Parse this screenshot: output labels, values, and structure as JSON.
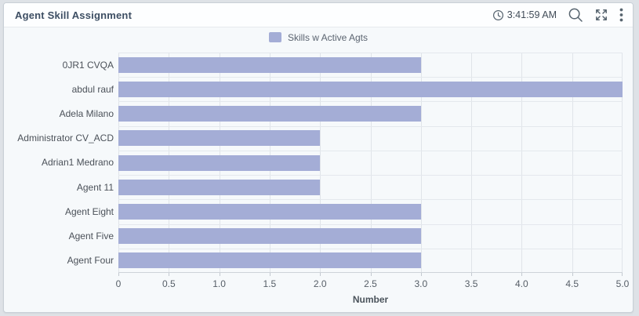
{
  "widget": {
    "title": "Agent Skill Assignment",
    "refresh_time": "3:41:59 AM"
  },
  "icons": {
    "clock": "clock-icon",
    "search": "search-icon",
    "fullscreen": "fullscreen-expand-icon",
    "menu": "kebab-menu-icon"
  },
  "legend": {
    "label": "Skills w Active Agts",
    "swatch_color": "#a4add6"
  },
  "chart_data": {
    "type": "bar",
    "orientation": "horizontal",
    "title": "Agent Skill Assignment",
    "categories": [
      "0JR1 CVQA",
      "abdul rauf",
      "Adela Milano",
      "Administrator CV_ACD",
      "Adrian1 Medrano",
      "Agent 11",
      "Agent Eight",
      "Agent Five",
      "Agent Four"
    ],
    "series": [
      {
        "name": "Skills w Active Agts",
        "values": [
          3,
          5,
          3,
          2,
          2,
          2,
          3,
          3,
          3
        ]
      }
    ],
    "xlabel": "Number",
    "ylabel": "",
    "xlim": [
      0,
      5
    ],
    "xticks": [
      0,
      0.5,
      1,
      1.5,
      2,
      2.5,
      3,
      3.5,
      4,
      4.5,
      5
    ],
    "xtick_labels": [
      "0",
      "0.5",
      "1.0",
      "1.5",
      "2.0",
      "2.5",
      "3.0",
      "3.5",
      "4.0",
      "4.5",
      "5.0"
    ],
    "grid": true,
    "legend_position": "top",
    "bar_color": "#a4add6"
  },
  "colors": {
    "page_bg": "#dee2e7",
    "widget_bg": "#f6f9fb",
    "title_text": "#3d4e63",
    "bar": "#a4add6"
  }
}
